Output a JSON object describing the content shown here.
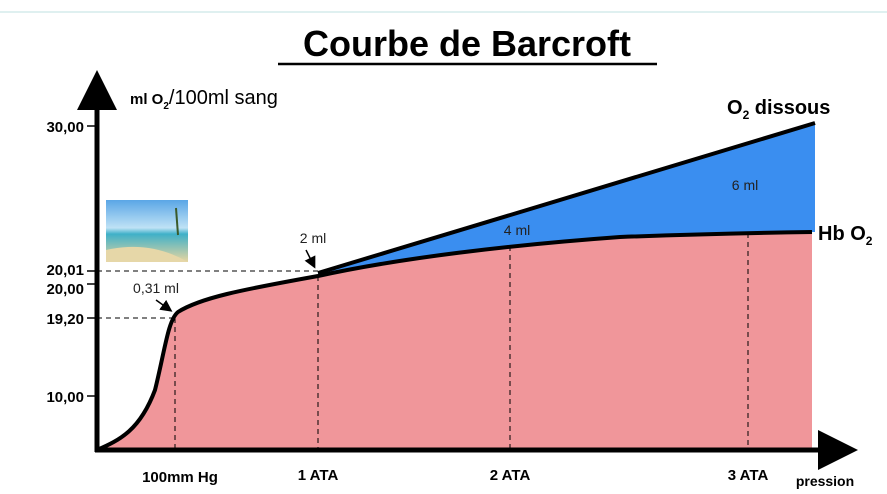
{
  "header": {
    "title": "Courbe de Barcroft"
  },
  "y_axis": {
    "label": [
      "ml O",
      "2",
      "/100ml sang"
    ],
    "ticks": [
      "30,00",
      "20,01",
      "20,00",
      "19,20",
      "10,00"
    ]
  },
  "x_axis": {
    "ticks": [
      "100mm Hg",
      "1 ATA",
      "2 ATA",
      "3 ATA"
    ],
    "label": "pression"
  },
  "curves": [
    {
      "label": [
        "O",
        "2",
        " dissous"
      ]
    },
    {
      "label": [
        "Hb O",
        "2"
      ]
    }
  ],
  "annotations": [
    "0,31 ml",
    "2 ml",
    "4 ml",
    "6 ml"
  ]
}
